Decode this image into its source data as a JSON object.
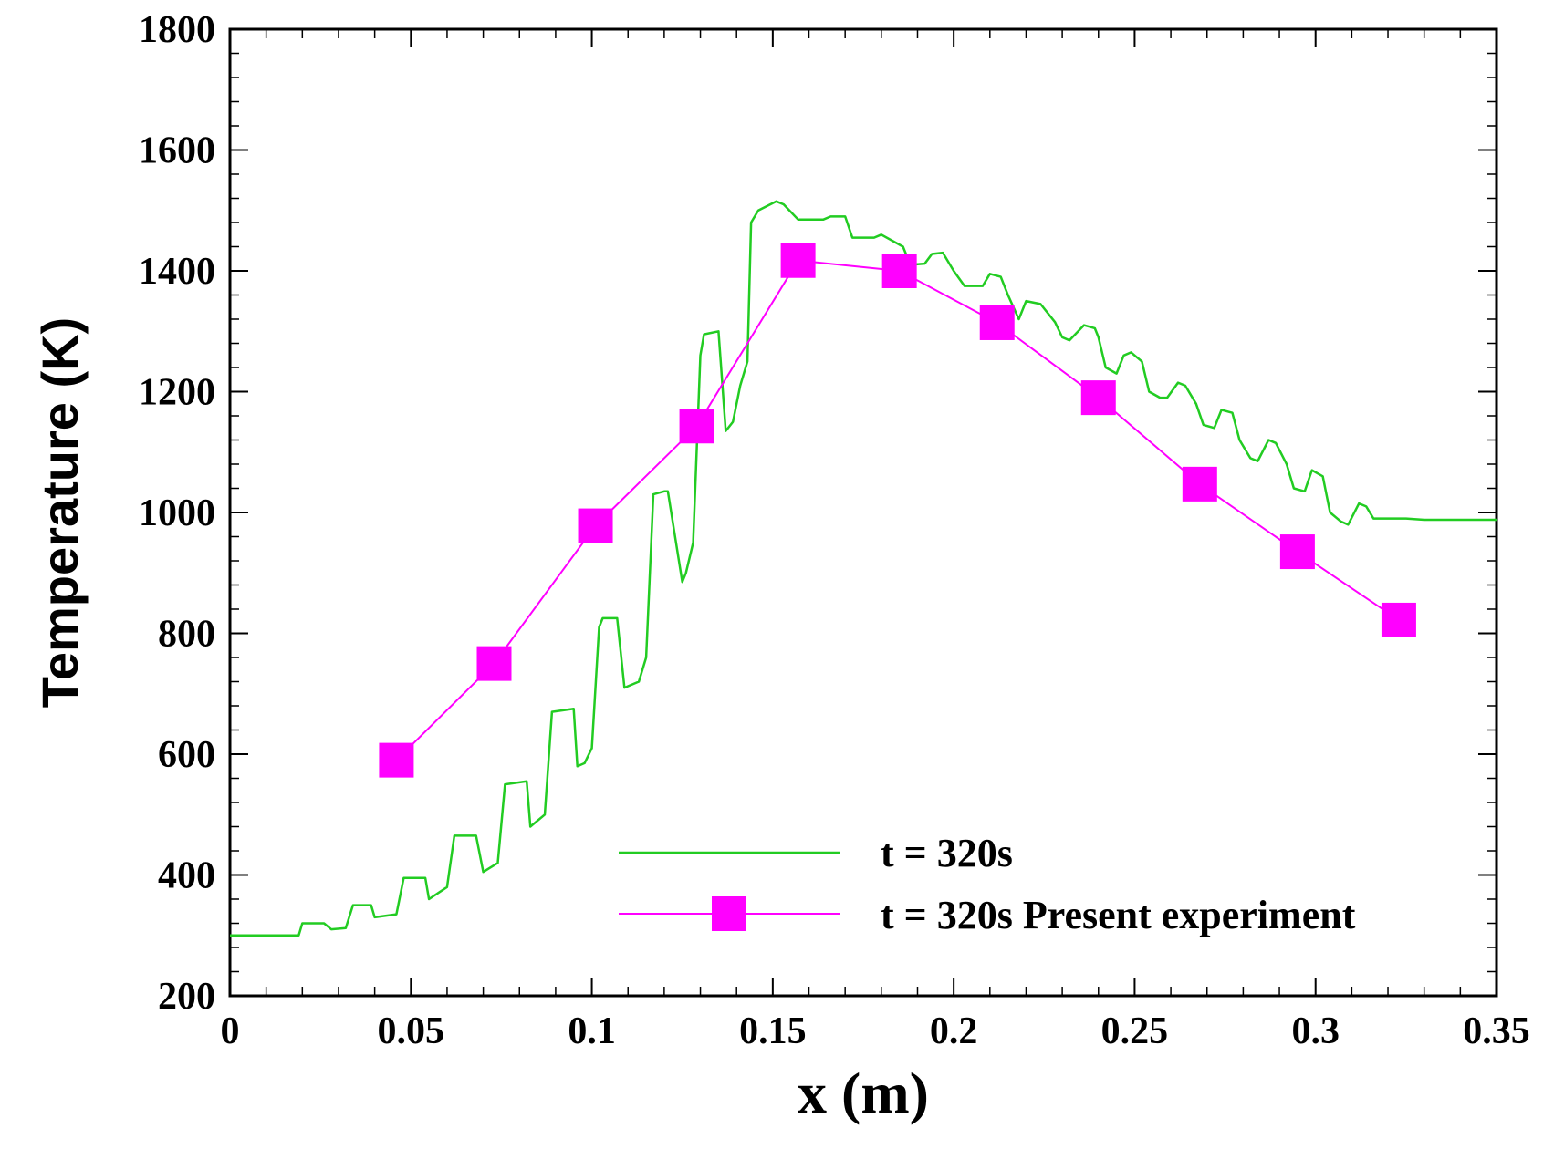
{
  "chart_data": {
    "type": "line",
    "title": "",
    "xlabel": "x (m)",
    "ylabel": "Temperature (K)",
    "xlim": [
      0,
      0.35
    ],
    "ylim": [
      200,
      1800
    ],
    "xticks": [
      0,
      0.05,
      0.1,
      0.15,
      0.2,
      0.25,
      0.3,
      0.35
    ],
    "xtick_labels": [
      "0",
      "0.05",
      "0.1",
      "0.15",
      "0.2",
      "0.25",
      "0.3",
      "0.35"
    ],
    "yticks": [
      200,
      400,
      600,
      800,
      1000,
      1200,
      1400,
      1600,
      1800
    ],
    "ytick_labels": [
      "200",
      "400",
      "600",
      "800",
      "1000",
      "1200",
      "1400",
      "1600",
      "1800"
    ],
    "grid": false,
    "legend_position": "bottom-right",
    "series": [
      {
        "name": "t = 320s",
        "color": "#22cc22",
        "marker": "none",
        "x": [
          0,
          0.019,
          0.02,
          0.026,
          0.028,
          0.032,
          0.034,
          0.039,
          0.04,
          0.046,
          0.048,
          0.054,
          0.055,
          0.06,
          0.062,
          0.068,
          0.07,
          0.074,
          0.076,
          0.082,
          0.083,
          0.087,
          0.089,
          0.095,
          0.096,
          0.098,
          0.1,
          0.102,
          0.103,
          0.107,
          0.109,
          0.113,
          0.115,
          0.117,
          0.12,
          0.121,
          0.125,
          0.126,
          0.128,
          0.13,
          0.131,
          0.135,
          0.137,
          0.139,
          0.141,
          0.143,
          0.144,
          0.146,
          0.151,
          0.153,
          0.157,
          0.159,
          0.164,
          0.166,
          0.17,
          0.172,
          0.178,
          0.18,
          0.186,
          0.188,
          0.192,
          0.194,
          0.197,
          0.2,
          0.203,
          0.208,
          0.21,
          0.213,
          0.215,
          0.218,
          0.22,
          0.224,
          0.228,
          0.23,
          0.232,
          0.236,
          0.239,
          0.24,
          0.242,
          0.245,
          0.247,
          0.249,
          0.252,
          0.254,
          0.257,
          0.259,
          0.262,
          0.264,
          0.267,
          0.269,
          0.272,
          0.274,
          0.277,
          0.279,
          0.282,
          0.284,
          0.287,
          0.289,
          0.292,
          0.294,
          0.297,
          0.299,
          0.302,
          0.304,
          0.307,
          0.309,
          0.312,
          0.314,
          0.316,
          0.318,
          0.32,
          0.322,
          0.325,
          0.33,
          0.35
        ],
        "y": [
          300,
          300,
          320,
          320,
          310,
          312,
          350,
          350,
          330,
          335,
          395,
          395,
          360,
          380,
          465,
          465,
          405,
          420,
          550,
          555,
          480,
          500,
          670,
          675,
          580,
          585,
          610,
          810,
          825,
          825,
          710,
          720,
          760,
          1030,
          1035,
          1035,
          885,
          900,
          950,
          1260,
          1295,
          1300,
          1135,
          1150,
          1210,
          1250,
          1480,
          1500,
          1515,
          1510,
          1485,
          1485,
          1485,
          1490,
          1490,
          1455,
          1455,
          1460,
          1440,
          1410,
          1412,
          1428,
          1430,
          1400,
          1375,
          1375,
          1395,
          1390,
          1360,
          1320,
          1350,
          1345,
          1315,
          1290,
          1285,
          1310,
          1305,
          1290,
          1240,
          1230,
          1260,
          1265,
          1250,
          1200,
          1190,
          1190,
          1215,
          1210,
          1180,
          1145,
          1140,
          1170,
          1165,
          1120,
          1090,
          1085,
          1120,
          1115,
          1080,
          1040,
          1035,
          1070,
          1060,
          1000,
          985,
          980,
          1015,
          1010,
          990,
          990,
          990,
          990,
          990,
          988,
          988
        ]
      },
      {
        "name": "t = 320s Present experiment",
        "color": "#ff00ff",
        "marker": "square",
        "x": [
          0.046,
          0.073,
          0.101,
          0.129,
          0.157,
          0.185,
          0.212,
          0.24,
          0.268,
          0.295,
          0.323
        ],
        "y": [
          590,
          750,
          978,
          1143,
          1417,
          1400,
          1314,
          1190,
          1047,
          935,
          822
        ]
      }
    ]
  }
}
